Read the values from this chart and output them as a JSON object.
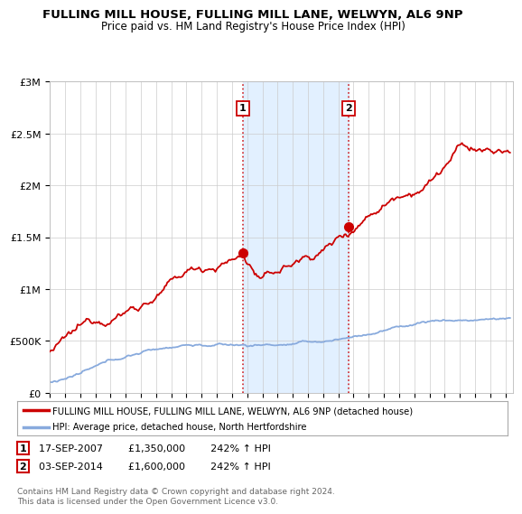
{
  "title": "FULLING MILL HOUSE, FULLING MILL LANE, WELWYN, AL6 9NP",
  "subtitle": "Price paid vs. HM Land Registry's House Price Index (HPI)",
  "ylabel_ticks": [
    "£0",
    "£500K",
    "£1M",
    "£1.5M",
    "£2M",
    "£2.5M",
    "£3M"
  ],
  "ytick_values": [
    0,
    500000,
    1000000,
    1500000,
    2000000,
    2500000,
    3000000
  ],
  "ylim": [
    0,
    3000000
  ],
  "xlim_start": 1995.0,
  "xlim_end": 2025.5,
  "red_line_color": "#cc0000",
  "blue_line_color": "#88aadd",
  "shade_color": "#ddeeff",
  "vline_color": "#cc0000",
  "marker1_x": 2007.72,
  "marker1_y": 1350000,
  "marker2_x": 2014.68,
  "marker2_y": 1600000,
  "legend_red": "FULLING MILL HOUSE, FULLING MILL LANE, WELWYN, AL6 9NP (detached house)",
  "legend_blue": "HPI: Average price, detached house, North Hertfordshire",
  "table_rows": [
    [
      "1",
      "17-SEP-2007",
      "£1,350,000",
      "242% ↑ HPI"
    ],
    [
      "2",
      "03-SEP-2014",
      "£1,600,000",
      "242% ↑ HPI"
    ]
  ],
  "footnote": "Contains HM Land Registry data © Crown copyright and database right 2024.\nThis data is licensed under the Open Government Licence v3.0.",
  "bg_color": "#ffffff",
  "grid_color": "#cccccc"
}
